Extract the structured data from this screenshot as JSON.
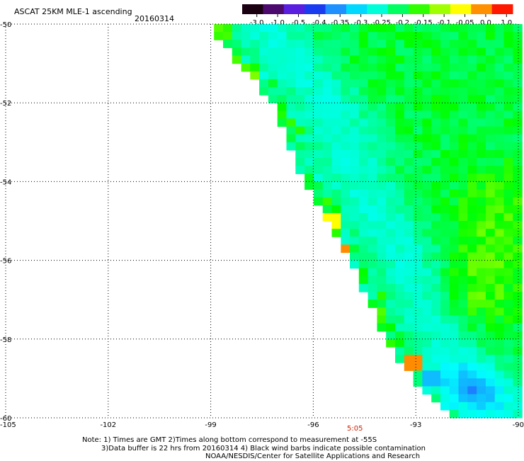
{
  "chart_data": {
    "type": "heatmap",
    "title": "ASCAT 25KM MLE-1 ascending",
    "date": "20160314",
    "colorbar": {
      "labels": [
        "-3.0",
        "-1.0",
        "-0.5",
        "-0.4",
        "-0.35",
        "-0.3",
        "-0.25",
        "-0.2",
        "-0.15",
        "-0.1",
        "-0.05",
        "0.0",
        "1.0"
      ],
      "colors": [
        "#1a0010",
        "#4d0a6e",
        "#5a1ee0",
        "#1a3cf0",
        "#1e90ff",
        "#00d8ff",
        "#00ffd8",
        "#00ff60",
        "#30ff00",
        "#a0ff00",
        "#ffff00",
        "#ff9000",
        "#ff1800"
      ]
    },
    "x_ticks": [
      "-105",
      "-102",
      "-99",
      "-96",
      "-93",
      "-90"
    ],
    "y_ticks": [
      "-50",
      "-52",
      "-54",
      "-56",
      "-58",
      "-60"
    ],
    "xlim": [
      -105,
      -90
    ],
    "ylim": [
      -60,
      -50
    ],
    "grid": true,
    "swath_west_edge": [
      [
        -99.1,
        -50
      ],
      [
        -97.2,
        -52
      ],
      [
        -96.3,
        -54
      ],
      [
        -95.0,
        -55.8
      ],
      [
        -94.0,
        -57.8
      ],
      [
        -93.3,
        -58.8
      ],
      [
        -92.0,
        -60
      ]
    ],
    "dominant_values": "-0.2 to -0.1",
    "notable_cells": [
      {
        "lon": -95.5,
        "lat": -55.0,
        "value": "-0.05"
      },
      {
        "lon": -95.1,
        "lat": -55.8,
        "value": "0.0"
      },
      {
        "lon": -97.6,
        "lat": -52.1,
        "value": "-0.05"
      },
      {
        "lon": -93.0,
        "lat": -58.6,
        "value": "0.0"
      },
      {
        "lon": -92.6,
        "lat": -59.0,
        "value": "-0.35"
      }
    ],
    "time_label": "5:05",
    "colors": {
      "time_label": "#cc2200",
      "missing": "#ffffff",
      "grid": "#000000"
    }
  },
  "notes": {
    "line1": "Note: 1) Times are GMT 2)Times along bottom correspond to measurement at -55S",
    "line2": "3)Data buffer is 22 hrs from 20160314 4) Black wind barbs indicate possible contamination",
    "line3": "NOAA/NESDIS/Center for Satellite Applications and Research"
  }
}
